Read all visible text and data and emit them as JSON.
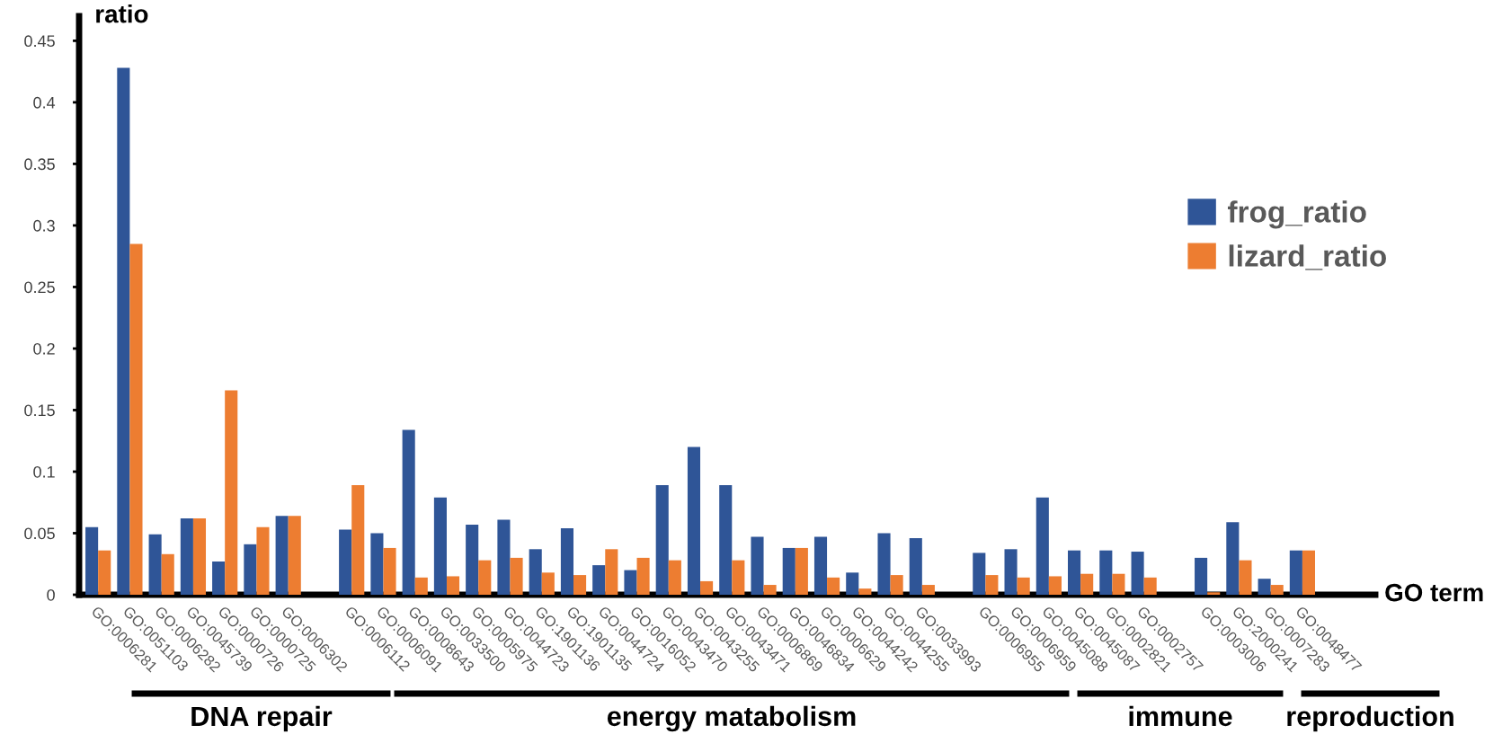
{
  "chart_data": {
    "type": "bar",
    "ylabel": "ratio",
    "xlabel": "GO term",
    "categories": [
      "GO:0006281",
      "GO:0051103",
      "GO:0006282",
      "GO:0045739",
      "GO:0000726",
      "GO:0000725",
      "GO:0006302",
      null,
      "GO:0006112",
      "GO:0006091",
      "GO:0008643",
      "GO:0033500",
      "GO:0005975",
      "GO:0044723",
      "GO:1901136",
      "GO:1901135",
      "GO:0044724",
      "GO:0016052",
      "GO:0043470",
      "GO:0043255",
      "GO:0043471",
      "GO:0006869",
      "GO:0046834",
      "GO:0006629",
      "GO:0044242",
      "GO:0044255",
      "GO:0033993",
      null,
      "GO:0006955",
      "GO:0006959",
      "GO:0045088",
      "GO:0045087",
      "GO:0002821",
      "GO:0002757",
      null,
      "GO:0003006",
      "GO:2000241",
      "GO:0007283",
      "GO:0048477"
    ],
    "series": [
      {
        "name": "frog_ratio",
        "color": "#2f5597",
        "values": [
          0.055,
          0.428,
          0.049,
          0.062,
          0.027,
          0.041,
          0.064,
          null,
          0.053,
          0.05,
          0.134,
          0.079,
          0.057,
          0.061,
          0.037,
          0.054,
          0.024,
          0.02,
          0.089,
          0.12,
          0.089,
          0.047,
          0.038,
          0.047,
          0.018,
          0.05,
          0.046,
          null,
          0.034,
          0.037,
          0.079,
          0.036,
          0.036,
          0.035,
          null,
          0.03,
          0.059,
          0.013,
          0.036
        ]
      },
      {
        "name": "lizard_ratio",
        "color": "#ed7d31",
        "values": [
          0.036,
          0.285,
          0.033,
          0.062,
          0.166,
          0.055,
          0.064,
          null,
          0.089,
          0.038,
          0.014,
          0.015,
          0.028,
          0.03,
          0.018,
          0.016,
          0.037,
          0.03,
          0.028,
          0.011,
          0.028,
          0.008,
          0.038,
          0.014,
          0.005,
          0.016,
          0.008,
          null,
          0.016,
          0.014,
          0.015,
          0.017,
          0.017,
          0.014,
          null,
          0.002,
          0.028,
          0.008,
          0.036
        ]
      }
    ],
    "ylim": [
      0,
      0.47
    ],
    "yticks": [
      0,
      0.05,
      0.1,
      0.15,
      0.2,
      0.25,
      0.3,
      0.35,
      0.4,
      0.45
    ],
    "grid": false,
    "legend": "right",
    "annotations": [
      "DNA repair",
      "energy matabolism",
      "immune",
      "reproduction"
    ]
  }
}
